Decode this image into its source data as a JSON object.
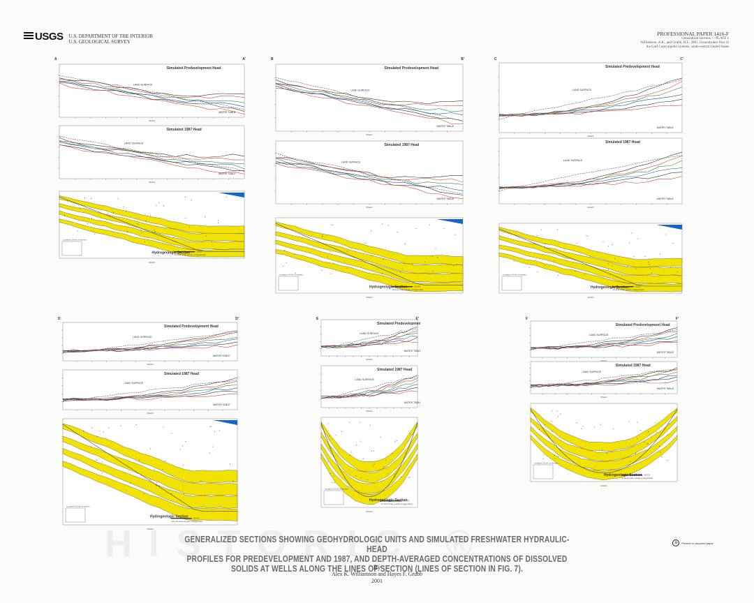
{
  "header": {
    "logo_text": "USGS",
    "dept_line1": "U.S. DEPARTMENT OF THE INTERIOR",
    "dept_line2": "U.S. GEOLOGICAL SURVEY",
    "paper_number": "PROFESSIONAL PAPER 1416-F",
    "plate_line": "Generalized sections — PLATE 1",
    "citation": "Williamson, A.K., and Grubb, H.F., 2001, Groundwater flow in the Gulf Coast aquifer systems, south-central United States"
  },
  "labels": {
    "pre": "Simulated Predevelopment Head",
    "h87": "Simulated 1987 Head",
    "hydro": "Hydrogeologic Section",
    "land": "LAND SURFACE",
    "water": "WATER TABLE",
    "miles": "MILES",
    "km": "KILOMETERS",
    "exag": "Vertical scale greatly exaggerated",
    "location": "Location of line of section"
  },
  "sections": [
    {
      "id": "A",
      "start": "A",
      "end": "A'"
    },
    {
      "id": "B",
      "start": "B",
      "end": "B'"
    },
    {
      "id": "C",
      "start": "C",
      "end": "C'"
    },
    {
      "id": "D",
      "start": "D",
      "end": "D'"
    },
    {
      "id": "E",
      "start": "E",
      "end": "E'"
    },
    {
      "id": "F",
      "start": "F",
      "end": "F'"
    }
  ],
  "title": {
    "line1": "GENERALIZED SECTIONS SHOWING GEOHYDROLOGIC UNITS AND SIMULATED FRESHWATER HYDRAULIC-HEAD",
    "line2": "PROFILES FOR PREDEVELOPMENT AND 1987, AND DEPTH-AVERAGED CONCENTRATIONS OF DISSOLVED",
    "line3": "SOLIDS AT WELLS ALONG THE LINES OF SECTION (LINES OF SECTION IN FIG. 7).",
    "by": "By",
    "authors": "Alex K. Williamson and Hayes F. Grubb",
    "year": "2001"
  },
  "footer": {
    "recycled": "Printed on recycled paper"
  },
  "colors": {
    "aquifer": "#f2e200",
    "gulf": "#1565c8",
    "line_red": "#d2473b",
    "line_black": "#333333",
    "line_green": "#2e8b3a",
    "line_blue": "#2448b8"
  }
}
